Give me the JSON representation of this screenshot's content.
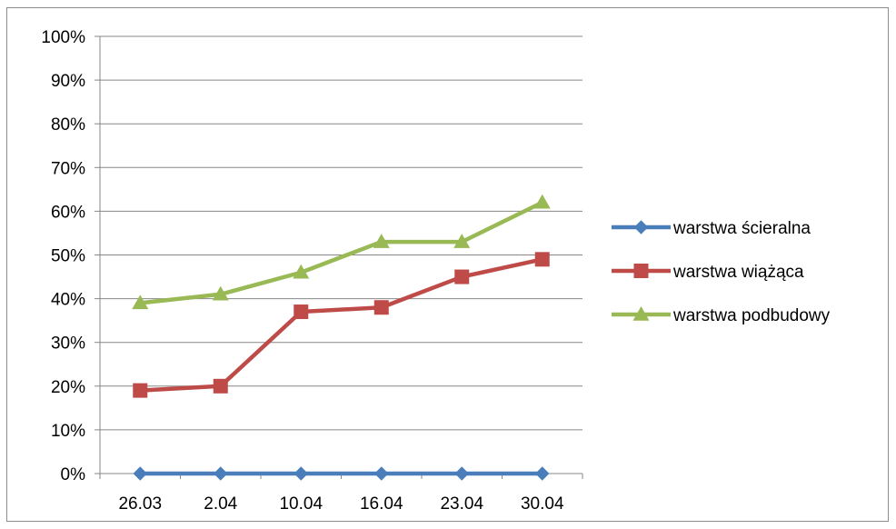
{
  "chart_data": {
    "type": "line",
    "title": "",
    "xlabel": "",
    "ylabel": "",
    "categories": [
      "26.03",
      "2.04",
      "10.04",
      "16.04",
      "23.04",
      "30.04"
    ],
    "ylim": [
      0,
      100
    ],
    "yticks": [
      "0%",
      "10%",
      "20%",
      "30%",
      "40%",
      "50%",
      "60%",
      "70%",
      "80%",
      "90%",
      "100%"
    ],
    "grid": true,
    "legend_position": "right",
    "series": [
      {
        "name": "warstwa ścieralna",
        "values": [
          0,
          0,
          0,
          0,
          0,
          0
        ],
        "color": "#4a7ebb",
        "marker": "diamond"
      },
      {
        "name": "warstwa wiążąca",
        "values": [
          19,
          20,
          37,
          38,
          45,
          49
        ],
        "color": "#be4b48",
        "marker": "square"
      },
      {
        "name": "warstwa podbudowy",
        "values": [
          39,
          41,
          46,
          53,
          53,
          62
        ],
        "color": "#98b954",
        "marker": "triangle"
      }
    ]
  }
}
